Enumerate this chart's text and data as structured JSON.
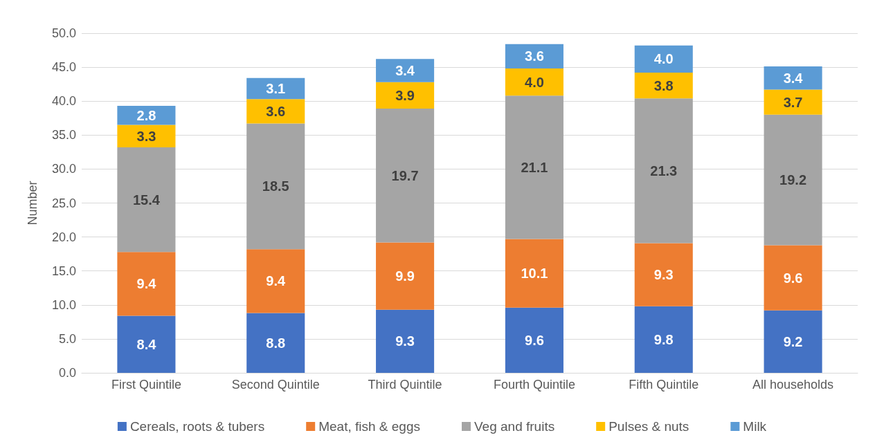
{
  "chart_data": {
    "type": "bar",
    "stacked": true,
    "ylabel": "Number",
    "categories": [
      "First Quintile",
      "Second Quintile",
      "Third Quintile",
      "Fourth Quintile",
      "Fifth Quintile",
      "All households"
    ],
    "series": [
      {
        "name": "Cereals, roots & tubers",
        "color": "#4472c4",
        "values": [
          8.4,
          8.8,
          9.3,
          9.6,
          9.8,
          9.2
        ],
        "value_labels": [
          "8.4",
          "8.8",
          "9.3",
          "9.6",
          "9.8",
          "9.2"
        ]
      },
      {
        "name": "Meat, fish & eggs",
        "color": "#ed7d31",
        "values": [
          9.4,
          9.4,
          9.9,
          10.1,
          9.3,
          9.6
        ],
        "value_labels": [
          "9.4",
          "9.4",
          "9.9",
          "10.1",
          "9.3",
          "9.6"
        ]
      },
      {
        "name": "Veg and fruits",
        "color": "#a5a5a5",
        "values": [
          15.4,
          18.5,
          19.7,
          21.1,
          21.3,
          19.2
        ],
        "value_labels": [
          "15.4",
          "18.5",
          "19.7",
          "21.1",
          "21.3",
          "19.2"
        ]
      },
      {
        "name": "Pulses & nuts",
        "color": "#ffc000",
        "values": [
          3.3,
          3.6,
          3.9,
          4.0,
          3.8,
          3.7
        ],
        "value_labels": [
          "3.3",
          "3.6",
          "3.9",
          "4.0",
          "3.8",
          "3.7"
        ]
      },
      {
        "name": "Milk",
        "color": "#5b9bd5",
        "values": [
          2.8,
          3.1,
          3.4,
          3.6,
          4.0,
          3.4
        ],
        "value_labels": [
          "2.8",
          "3.1",
          "3.4",
          "3.6",
          "4.0",
          "3.4"
        ]
      }
    ],
    "ylim": [
      0,
      50
    ],
    "yticks": [
      {
        "value": 0,
        "label": "0.0"
      },
      {
        "value": 5,
        "label": "5.0"
      },
      {
        "value": 10,
        "label": "10.0"
      },
      {
        "value": 15,
        "label": "15.0"
      },
      {
        "value": 20,
        "label": "20.0"
      },
      {
        "value": 25,
        "label": "25.0"
      },
      {
        "value": 30,
        "label": "30.0"
      },
      {
        "value": 35,
        "label": "35.0"
      },
      {
        "value": 40,
        "label": "40.0"
      },
      {
        "value": 45,
        "label": "45.0"
      },
      {
        "value": 50,
        "label": "50.0"
      }
    ],
    "grid": "y",
    "legend": "bottom"
  }
}
